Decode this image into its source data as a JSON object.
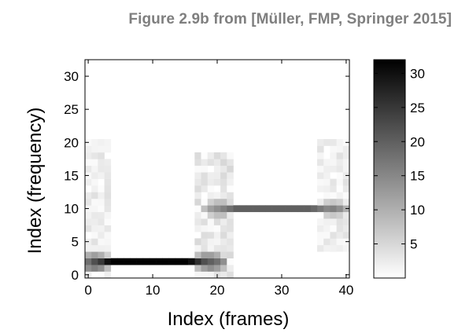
{
  "figure_caption": "Figure 2.9b from [Müller, FMP, Springer 2015]",
  "chart_data": {
    "type": "heatmap",
    "title": "",
    "xlabel": "Index (frames)",
    "ylabel": "Index (frequency)",
    "xlim": [
      -0.5,
      40.5
    ],
    "ylim": [
      -0.5,
      32.5
    ],
    "x_ticks": [
      0,
      10,
      20,
      30,
      40
    ],
    "y_ticks": [
      0,
      5,
      10,
      15,
      20,
      25,
      30
    ],
    "colorbar": {
      "range": [
        0,
        32
      ],
      "ticks": [
        5,
        10,
        15,
        20,
        25,
        30
      ],
      "colormap": "gray_reversed",
      "low_color": "#ffffff",
      "high_color": "#000000"
    },
    "grid": false,
    "legend": "none",
    "description_of_cells": "STFT magnitude: index 0..40 frames, 0..32 frequency bins; values omitted are ~0",
    "cells": [
      {
        "x": 0,
        "y": 1,
        "v": 14
      },
      {
        "x": 0,
        "y": 2,
        "v": 18
      },
      {
        "x": 0,
        "y": 3,
        "v": 10
      },
      {
        "x": 1,
        "y": 1,
        "v": 16
      },
      {
        "x": 1,
        "y": 2,
        "v": 22
      },
      {
        "x": 1,
        "y": 3,
        "v": 12
      },
      {
        "x": 2,
        "y": 1,
        "v": 14
      },
      {
        "x": 2,
        "y": 2,
        "v": 25
      },
      {
        "x": 2,
        "y": 3,
        "v": 10
      },
      {
        "x": 3,
        "y": 1,
        "v": 8
      },
      {
        "x": 3,
        "y": 2,
        "v": 30
      },
      {
        "x": 3,
        "y": 3,
        "v": 6
      },
      {
        "x": 4,
        "y": 2,
        "v": 32
      },
      {
        "x": 5,
        "y": 2,
        "v": 32
      },
      {
        "x": 6,
        "y": 2,
        "v": 32
      },
      {
        "x": 7,
        "y": 2,
        "v": 32
      },
      {
        "x": 8,
        "y": 2,
        "v": 32
      },
      {
        "x": 9,
        "y": 2,
        "v": 32
      },
      {
        "x": 10,
        "y": 2,
        "v": 32
      },
      {
        "x": 11,
        "y": 2,
        "v": 32
      },
      {
        "x": 12,
        "y": 2,
        "v": 32
      },
      {
        "x": 13,
        "y": 2,
        "v": 32
      },
      {
        "x": 14,
        "y": 2,
        "v": 32
      },
      {
        "x": 15,
        "y": 2,
        "v": 32
      },
      {
        "x": 16,
        "y": 2,
        "v": 30
      },
      {
        "x": 17,
        "y": 2,
        "v": 26
      },
      {
        "x": 17,
        "y": 1,
        "v": 8
      },
      {
        "x": 17,
        "y": 3,
        "v": 8
      },
      {
        "x": 18,
        "y": 2,
        "v": 22
      },
      {
        "x": 18,
        "y": 1,
        "v": 12
      },
      {
        "x": 18,
        "y": 3,
        "v": 12
      },
      {
        "x": 19,
        "y": 2,
        "v": 20
      },
      {
        "x": 19,
        "y": 1,
        "v": 14
      },
      {
        "x": 19,
        "y": 3,
        "v": 12
      },
      {
        "x": 20,
        "y": 2,
        "v": 18
      },
      {
        "x": 20,
        "y": 1,
        "v": 12
      },
      {
        "x": 20,
        "y": 3,
        "v": 10
      },
      {
        "x": 21,
        "y": 2,
        "v": 14
      },
      {
        "x": 21,
        "y": 1,
        "v": 8
      },
      {
        "x": 18,
        "y": 10,
        "v": 8
      },
      {
        "x": 19,
        "y": 10,
        "v": 12
      },
      {
        "x": 19,
        "y": 9,
        "v": 6
      },
      {
        "x": 19,
        "y": 11,
        "v": 6
      },
      {
        "x": 20,
        "y": 10,
        "v": 14
      },
      {
        "x": 20,
        "y": 9,
        "v": 8
      },
      {
        "x": 20,
        "y": 11,
        "v": 8
      },
      {
        "x": 21,
        "y": 10,
        "v": 16
      },
      {
        "x": 21,
        "y": 9,
        "v": 8
      },
      {
        "x": 21,
        "y": 11,
        "v": 8
      },
      {
        "x": 22,
        "y": 10,
        "v": 18
      },
      {
        "x": 23,
        "y": 10,
        "v": 20
      },
      {
        "x": 24,
        "y": 10,
        "v": 20
      },
      {
        "x": 25,
        "y": 10,
        "v": 20
      },
      {
        "x": 26,
        "y": 10,
        "v": 20
      },
      {
        "x": 27,
        "y": 10,
        "v": 20
      },
      {
        "x": 28,
        "y": 10,
        "v": 20
      },
      {
        "x": 29,
        "y": 10,
        "v": 20
      },
      {
        "x": 30,
        "y": 10,
        "v": 20
      },
      {
        "x": 31,
        "y": 10,
        "v": 20
      },
      {
        "x": 32,
        "y": 10,
        "v": 20
      },
      {
        "x": 33,
        "y": 10,
        "v": 20
      },
      {
        "x": 34,
        "y": 10,
        "v": 20
      },
      {
        "x": 35,
        "y": 10,
        "v": 19
      },
      {
        "x": 36,
        "y": 10,
        "v": 17
      },
      {
        "x": 37,
        "y": 10,
        "v": 15
      },
      {
        "x": 37,
        "y": 9,
        "v": 6
      },
      {
        "x": 37,
        "y": 11,
        "v": 6
      },
      {
        "x": 38,
        "y": 10,
        "v": 16
      },
      {
        "x": 38,
        "y": 9,
        "v": 7
      },
      {
        "x": 38,
        "y": 11,
        "v": 7
      },
      {
        "x": 39,
        "y": 10,
        "v": 14
      },
      {
        "x": 39,
        "y": 9,
        "v": 6
      },
      {
        "x": 39,
        "y": 11,
        "v": 6
      },
      {
        "x": 40,
        "y": 10,
        "v": 10
      }
    ],
    "faint_regions": [
      {
        "x0": 0,
        "x1": 3,
        "y0": 0,
        "y1": 20,
        "v_max": 4
      },
      {
        "x0": 17,
        "x1": 22,
        "y0": 0,
        "y1": 18,
        "v_max": 5
      },
      {
        "x0": 36,
        "x1": 40,
        "y0": 4,
        "y1": 20,
        "v_max": 4
      }
    ]
  }
}
